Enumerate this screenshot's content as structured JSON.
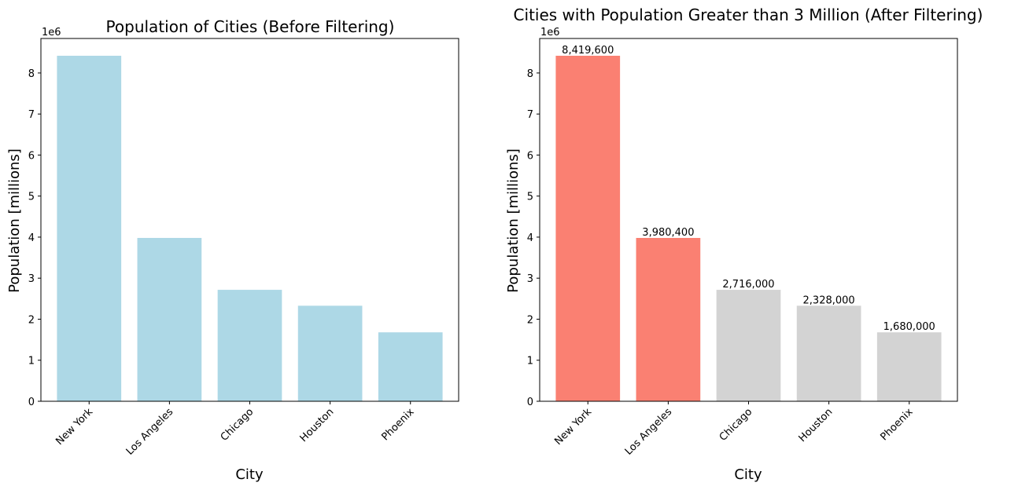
{
  "chart_data": [
    {
      "type": "bar",
      "title": "Population of Cities (Before Filtering)",
      "xlabel": "City",
      "ylabel": "Population [millions]",
      "offset_label": "1e6",
      "categories": [
        "New York",
        "Los Angeles",
        "Chicago",
        "Houston",
        "Phoenix"
      ],
      "values": [
        8419600,
        3980400,
        2716000,
        2328000,
        1680000
      ],
      "bar_colors": [
        "#add8e6",
        "#add8e6",
        "#add8e6",
        "#add8e6",
        "#add8e6"
      ],
      "yticks": [
        0,
        1,
        2,
        3,
        4,
        5,
        6,
        7,
        8
      ],
      "ylim": [
        0,
        8840580
      ],
      "grid": false,
      "data_labels": []
    },
    {
      "type": "bar",
      "title": "Cities with Population Greater than 3 Million (After Filtering)",
      "xlabel": "City",
      "ylabel": "Population [millions]",
      "offset_label": "1e6",
      "categories": [
        "New York",
        "Los Angeles",
        "Chicago",
        "Houston",
        "Phoenix"
      ],
      "values": [
        8419600,
        3980400,
        2716000,
        2328000,
        1680000
      ],
      "bar_colors": [
        "#fa8072",
        "#fa8072",
        "#d3d3d3",
        "#d3d3d3",
        "#d3d3d3"
      ],
      "yticks": [
        0,
        1,
        2,
        3,
        4,
        5,
        6,
        7,
        8
      ],
      "ylim": [
        0,
        8840580
      ],
      "grid": false,
      "data_labels": [
        "8,419,600",
        "3,980,400",
        "2,716,000",
        "2,328,000",
        "1,680,000"
      ]
    }
  ]
}
